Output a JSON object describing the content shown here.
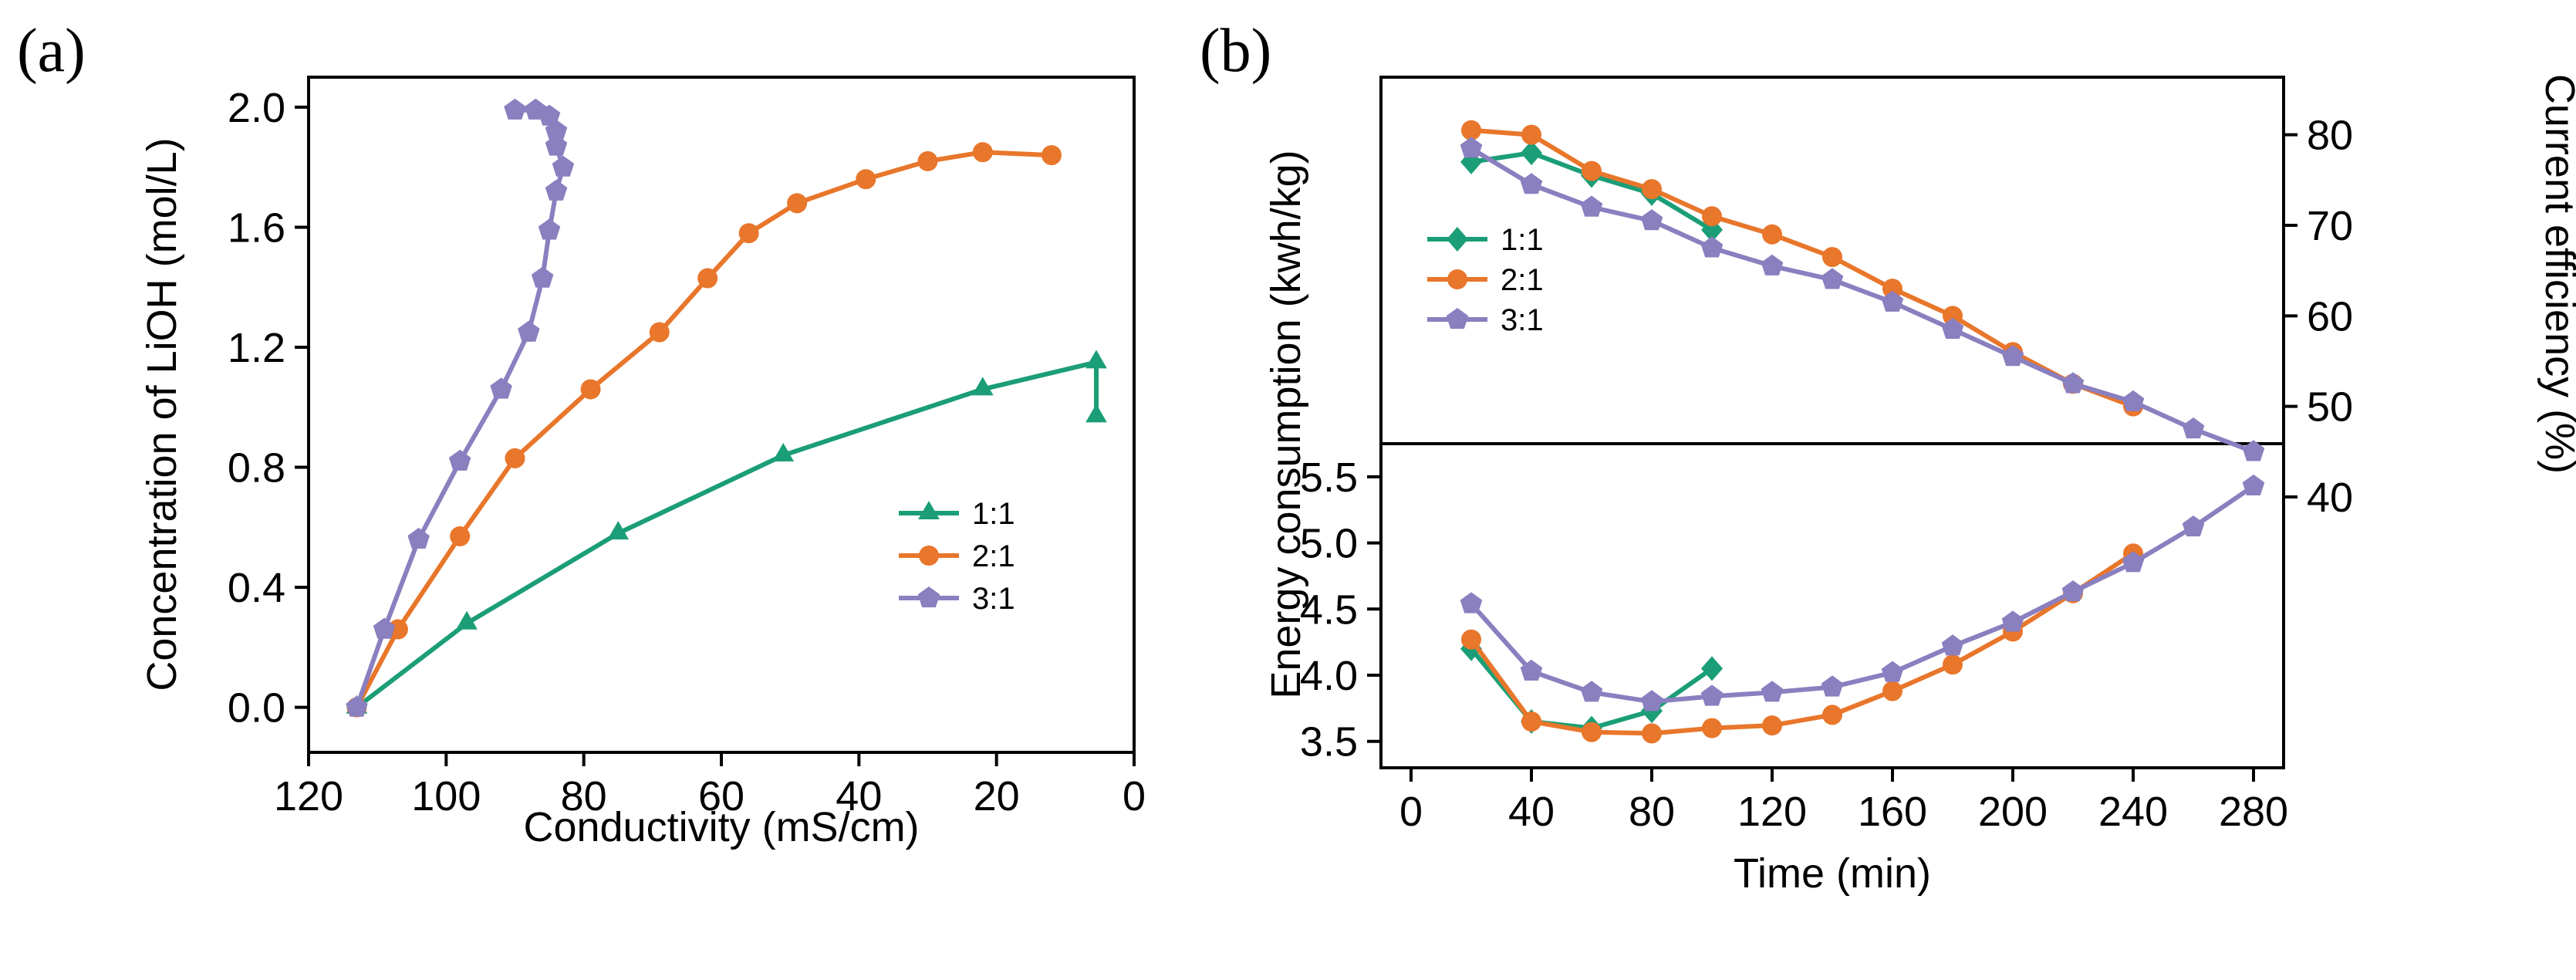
{
  "figure": {
    "panels": [
      {
        "id": "a",
        "tag": "(a)"
      },
      {
        "id": "b",
        "tag": "(b)"
      }
    ]
  },
  "colors": {
    "1:1": "#1b9e77",
    "2:1": "#e8762b",
    "3:1": "#8a7fbf"
  },
  "chart_data": [
    {
      "id": "a",
      "type": "line",
      "title": "",
      "tag": "(a)",
      "xlabel": "Conductivity (mS/cm)",
      "ylabel": "Concentration of LiOH (mol/L)",
      "xlim": [
        120,
        0
      ],
      "ylim": [
        -0.15,
        2.1
      ],
      "xticks": [
        120,
        100,
        80,
        60,
        40,
        20,
        0
      ],
      "yticks": [
        0.0,
        0.4,
        0.8,
        1.2,
        1.6,
        2.0
      ],
      "xtick_labels": [
        "120",
        "100",
        "80",
        "60",
        "40",
        "20",
        "0"
      ],
      "ytick_labels": [
        "0.0",
        "0.4",
        "0.8",
        "1.2",
        "1.6",
        "2.0"
      ],
      "legend_position": "center-right",
      "series": [
        {
          "name": "1:1",
          "marker": "triangle",
          "x": [
            113,
            97,
            75,
            51,
            22,
            5.5,
            5.5
          ],
          "y": [
            0.0,
            0.28,
            0.58,
            0.84,
            1.06,
            1.15,
            0.97
          ]
        },
        {
          "name": "2:1",
          "marker": "circle",
          "x": [
            113,
            107,
            98,
            90,
            79,
            69,
            62,
            56,
            49,
            39,
            30,
            22,
            12
          ],
          "y": [
            0.0,
            0.26,
            0.57,
            0.83,
            1.06,
            1.25,
            1.43,
            1.58,
            1.68,
            1.76,
            1.82,
            1.85,
            1.84
          ]
        },
        {
          "name": "3:1",
          "marker": "pentagon",
          "x": [
            113,
            109,
            104,
            98,
            92,
            88,
            86,
            85,
            84,
            83,
            84,
            84,
            85,
            87,
            90
          ],
          "y": [
            0.0,
            0.26,
            0.56,
            0.82,
            1.06,
            1.25,
            1.43,
            1.59,
            1.72,
            1.8,
            1.87,
            1.92,
            1.97,
            1.99,
            1.99
          ]
        }
      ]
    },
    {
      "id": "b-top",
      "type": "line",
      "tag": "(b)",
      "xlabel": "",
      "ylabel": "Current efficiency (%)",
      "ylabel_side": "right",
      "xlim": [
        -10,
        290
      ],
      "ylim": [
        40,
        85
      ],
      "yticks": [
        40,
        50,
        60,
        70,
        80
      ],
      "ytick_labels": [
        "40",
        "50",
        "60",
        "70",
        "80"
      ],
      "legend_position": "center-left",
      "series": [
        {
          "name": "1:1",
          "marker": "diamond",
          "x": [
            20,
            40,
            60,
            80,
            100
          ],
          "y": [
            77,
            78,
            75.5,
            73.5,
            69.5
          ]
        },
        {
          "name": "2:1",
          "marker": "circle",
          "x": [
            20,
            40,
            60,
            80,
            100,
            120,
            140,
            160,
            180,
            200,
            220,
            240
          ],
          "y": [
            80.5,
            80,
            76,
            74,
            71,
            69,
            66.5,
            63,
            60,
            56,
            52.5,
            50
          ]
        },
        {
          "name": "3:1",
          "marker": "pentagon",
          "x": [
            20,
            40,
            60,
            80,
            100,
            120,
            140,
            160,
            180,
            200,
            220,
            240,
            260,
            280
          ],
          "y": [
            78.5,
            74.5,
            72,
            70.5,
            67.5,
            65.5,
            64,
            61.5,
            58.5,
            55.5,
            52.5,
            50.5,
            47.5,
            45
          ]
        }
      ]
    },
    {
      "id": "b-bottom",
      "type": "line",
      "xlabel": "Time (min)",
      "ylabel": "Energy consumption (kwh/kg)",
      "xlim": [
        -10,
        290
      ],
      "ylim": [
        3.3,
        5.75
      ],
      "xticks": [
        0,
        40,
        80,
        120,
        160,
        200,
        240,
        280
      ],
      "xtick_labels": [
        "0",
        "40",
        "80",
        "120",
        "160",
        "200",
        "240",
        "280"
      ],
      "yticks": [
        3.5,
        4.0,
        4.5,
        5.0,
        5.5
      ],
      "ytick_labels": [
        "3.5",
        "4.0",
        "4.5",
        "5.0",
        "5.5"
      ],
      "series": [
        {
          "name": "1:1",
          "marker": "diamond",
          "x": [
            20,
            40,
            60,
            80,
            100
          ],
          "y": [
            4.2,
            3.65,
            3.6,
            3.73,
            4.05
          ]
        },
        {
          "name": "2:1",
          "marker": "circle",
          "x": [
            20,
            40,
            60,
            80,
            100,
            120,
            140,
            160,
            180,
            200,
            220,
            240
          ],
          "y": [
            4.27,
            3.65,
            3.57,
            3.56,
            3.6,
            3.62,
            3.7,
            3.88,
            4.08,
            4.33,
            4.62,
            4.92
          ]
        },
        {
          "name": "3:1",
          "marker": "pentagon",
          "x": [
            20,
            40,
            60,
            80,
            100,
            120,
            140,
            160,
            180,
            200,
            220,
            240,
            260,
            280
          ],
          "y": [
            4.54,
            4.03,
            3.87,
            3.8,
            3.84,
            3.87,
            3.91,
            4.02,
            4.22,
            4.4,
            4.63,
            4.85,
            5.12,
            5.43
          ]
        }
      ]
    }
  ]
}
